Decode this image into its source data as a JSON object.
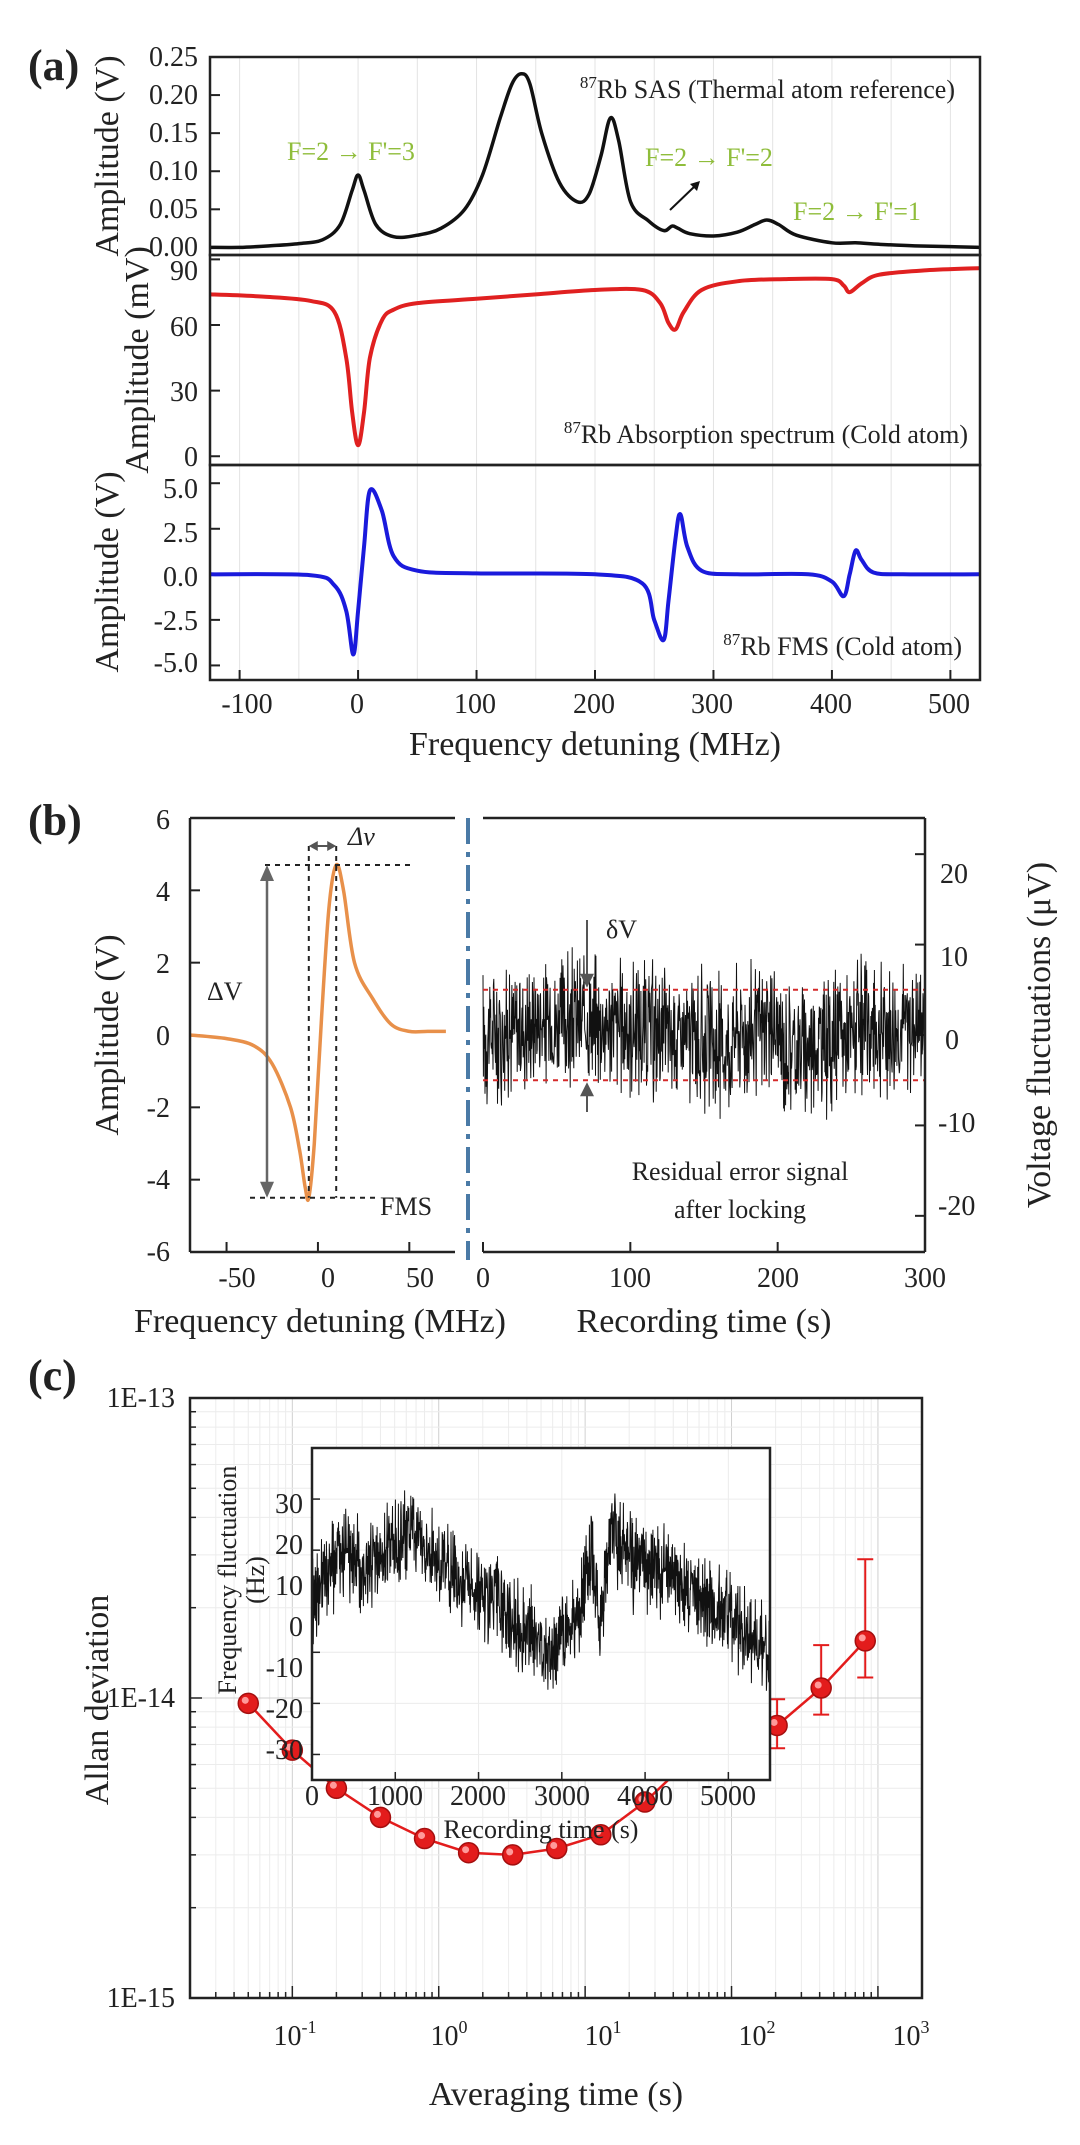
{
  "figure": {
    "panel_labels": [
      "(a)",
      "(b)",
      "(c)"
    ]
  },
  "chart_data": [
    {
      "id": "a-top",
      "type": "line",
      "title": "",
      "annotation": "87Rb SAS (Thermal atom reference)",
      "ylabel": "Amplitude (V)",
      "xlabel": "",
      "xlim": [
        -125,
        525
      ],
      "ylim": [
        -0.01,
        0.25
      ],
      "yticks": [
        0.0,
        0.05,
        0.1,
        0.15,
        0.2,
        0.25
      ],
      "ytick_labels": [
        "0.00",
        "0.05",
        "0.10",
        "0.15",
        "0.20",
        "0.25"
      ],
      "color": "#111111",
      "x": [
        -125,
        -100,
        -75,
        -50,
        -30,
        -15,
        -5,
        0,
        5,
        15,
        30,
        50,
        70,
        90,
        105,
        120,
        130,
        138,
        145,
        155,
        170,
        185,
        195,
        205,
        213,
        220,
        230,
        245,
        258,
        265,
        270,
        280,
        300,
        320,
        335,
        345,
        355,
        370,
        400,
        420,
        440,
        470,
        500,
        525
      ],
      "y": [
        0.0,
        0.0,
        0.002,
        0.005,
        0.01,
        0.03,
        0.075,
        0.095,
        0.075,
        0.03,
        0.014,
        0.016,
        0.025,
        0.05,
        0.095,
        0.17,
        0.215,
        0.228,
        0.215,
        0.15,
        0.085,
        0.06,
        0.07,
        0.12,
        0.17,
        0.14,
        0.06,
        0.035,
        0.022,
        0.028,
        0.025,
        0.018,
        0.015,
        0.02,
        0.03,
        0.036,
        0.03,
        0.016,
        0.006,
        0.006,
        0.004,
        0.002,
        0.001,
        0.0
      ],
      "transitions": [
        "F=2 → F'=3",
        "F=2 → F'=2",
        "F=2 → F'=1"
      ]
    },
    {
      "id": "a-mid",
      "type": "line",
      "title": "",
      "annotation": "87Rb Absorption spectrum (Cold atom)",
      "ylabel": "Amplitude (mV)",
      "xlabel": "",
      "xlim": [
        -125,
        525
      ],
      "ylim": [
        -4,
        92
      ],
      "yticks": [
        0,
        30,
        60,
        90
      ],
      "ytick_labels": [
        "0",
        "30",
        "60",
        "90"
      ],
      "color": "#e02020",
      "x": [
        -125,
        -80,
        -40,
        -20,
        -10,
        -5,
        0,
        5,
        10,
        20,
        30,
        50,
        100,
        150,
        200,
        240,
        255,
        262,
        268,
        275,
        290,
        320,
        360,
        400,
        410,
        415,
        425,
        440,
        480,
        525
      ],
      "y": [
        74,
        73,
        71,
        66,
        45,
        20,
        5,
        20,
        45,
        62,
        67,
        70,
        72,
        74,
        76,
        76,
        70,
        61,
        58,
        66,
        76,
        80,
        81,
        81,
        78,
        75,
        79,
        83,
        85,
        86
      ]
    },
    {
      "id": "a-bot",
      "type": "line",
      "title": "",
      "annotation": "87Rb FMS (Cold atom)",
      "ylabel": "Amplitude (V)",
      "xlabel": "Frequency detuning (MHz)",
      "xlim": [
        -125,
        525
      ],
      "ylim": [
        -5.8,
        6.0
      ],
      "yticks": [
        -5.0,
        -2.5,
        0.0,
        2.5,
        5.0
      ],
      "ytick_labels": [
        "-5.0",
        "-2.5",
        "0.0",
        "2.5",
        "5.0"
      ],
      "xticks": [
        -100,
        0,
        100,
        200,
        300,
        400,
        500
      ],
      "xtick_labels": [
        "-100",
        "0",
        "100",
        "200",
        "300",
        "400",
        "500"
      ],
      "color": "#1a1adc",
      "x": [
        -125,
        -40,
        -20,
        -10,
        -4,
        0,
        5,
        10,
        20,
        30,
        50,
        100,
        200,
        240,
        250,
        258,
        262,
        268,
        272,
        278,
        290,
        320,
        380,
        400,
        410,
        415,
        420,
        425,
        435,
        460,
        525
      ],
      "y": [
        0,
        -0.05,
        -0.6,
        -2.0,
        -4.4,
        -2.0,
        1.5,
        4.6,
        3.5,
        1.0,
        0.2,
        0.05,
        0,
        -0.5,
        -2.5,
        -3.6,
        -1.5,
        2.0,
        3.3,
        1.5,
        0.2,
        0,
        0,
        -0.4,
        -1.2,
        0,
        1.3,
        0.8,
        0.1,
        0,
        0
      ]
    },
    {
      "id": "b-left",
      "type": "line",
      "title": "",
      "ylabel": "Amplitude (V)",
      "xlabel": "Frequency detuning (MHz)",
      "xlim": [
        -70,
        75
      ],
      "ylim": [
        -6,
        6
      ],
      "yticks": [
        -6,
        -4,
        -2,
        0,
        2,
        4,
        6
      ],
      "ytick_labels": [
        "-6",
        "-4",
        "-2",
        "0",
        "2",
        "4",
        "6"
      ],
      "xticks": [
        -50,
        0,
        50
      ],
      "xtick_labels": [
        "-50",
        "0",
        "50"
      ],
      "color": "#e8904a",
      "x": [
        -70,
        -50,
        -35,
        -25,
        -15,
        -10,
        -7,
        -5,
        -2,
        2,
        6,
        10,
        14,
        20,
        30,
        40,
        50,
        60,
        70
      ],
      "y": [
        0,
        -0.1,
        -0.3,
        -0.8,
        -2.0,
        -3.2,
        -4.2,
        -4.5,
        -3.0,
        0.5,
        3.5,
        4.7,
        4.0,
        2.0,
        1.0,
        0.3,
        0.1,
        0.1,
        0.1
      ],
      "delta_V_label": "ΔV",
      "delta_nu_label": "Δν",
      "fms_label": "FMS"
    },
    {
      "id": "b-right",
      "type": "line",
      "title": "",
      "ylabel": "Voltage fluctuations (μV)",
      "xlabel": "Recording time (s)",
      "xlim": [
        0,
        300
      ],
      "ylim": [
        -24,
        24
      ],
      "yticks": [
        -20,
        -10,
        0,
        10,
        20
      ],
      "ytick_labels": [
        "-20",
        "-10",
        "0",
        "10",
        "20"
      ],
      "xticks": [
        0,
        100,
        200,
        300
      ],
      "xtick_labels": [
        "0",
        "100",
        "200",
        "300"
      ],
      "band_upper": 5,
      "band_lower": -5,
      "noise_amplitude": 6,
      "color": "#111111",
      "delta_label": "δV",
      "annotation_lines": [
        "Residual error signal",
        "after locking"
      ]
    },
    {
      "id": "c-main",
      "type": "scatter",
      "title": "",
      "ylabel": "Allan deviation",
      "xlabel": "Averaging time (s)",
      "log_x": true,
      "log_y": true,
      "xlim": [
        0.02,
        2000
      ],
      "ylim": [
        1e-15,
        1e-13
      ],
      "yticks": [
        1e-15,
        1e-14,
        1e-13
      ],
      "ytick_labels": [
        "1E-15",
        "1E-14",
        "1E-13"
      ],
      "xticks": [
        0.1,
        1,
        10,
        100,
        1000
      ],
      "xtick_labels": [
        "10-1",
        "100",
        "101",
        "102",
        "103"
      ],
      "x": [
        0.05,
        0.1,
        0.2,
        0.4,
        0.8,
        1.6,
        3.2,
        6.4,
        12.8,
        25.6,
        51.2,
        102.4,
        204.8,
        409.6,
        819.2
      ],
      "y": [
        9.6e-15,
        6.7e-15,
        5e-15,
        4e-15,
        3.4e-15,
        3.05e-15,
        3e-15,
        3.15e-15,
        3.5e-15,
        4.5e-15,
        6.2e-15,
        7.9e-15,
        8.1e-15,
        1.08e-14,
        1.55e-14
      ],
      "err_up": [
        0,
        0,
        0,
        0,
        0,
        0,
        0,
        0,
        0,
        0,
        5e-16,
        1e-15,
        1.8e-15,
        4.2e-15,
        1.35e-14
      ],
      "err_down": [
        0,
        0,
        0,
        0,
        0,
        0,
        0,
        0,
        0,
        0,
        5e-16,
        9e-16,
        1.3e-15,
        2e-15,
        3.8e-15
      ],
      "color": "#e31c1c"
    },
    {
      "id": "c-inset",
      "type": "line",
      "title": "",
      "ylabel": "Frequency fluctuation (Hz)",
      "xlabel": "Recording time (s)",
      "xlim": [
        0,
        5500
      ],
      "ylim": [
        -35,
        30
      ],
      "yticks": [
        -30,
        -20,
        -10,
        0,
        10,
        20,
        30
      ],
      "ytick_labels": [
        "-30",
        "-20",
        "-10",
        "0",
        "10",
        "20",
        "30"
      ],
      "xticks": [
        0,
        1000,
        2000,
        3000,
        4000,
        5000
      ],
      "xtick_labels": [
        "0",
        "1000",
        "2000",
        "3000",
        "4000",
        "5000"
      ],
      "color": "#111111",
      "trend_x": [
        0,
        200,
        400,
        600,
        900,
        1200,
        1500,
        2000,
        2500,
        2900,
        3200,
        3350,
        3450,
        3600,
        3800,
        4300,
        4800,
        5300,
        5500
      ],
      "trend_y": [
        0,
        5,
        10,
        6,
        10,
        14,
        8,
        2,
        -5,
        -10,
        -3,
        12,
        -5,
        15,
        8,
        5,
        0,
        -8,
        -10
      ],
      "noise_amplitude": 9
    }
  ]
}
